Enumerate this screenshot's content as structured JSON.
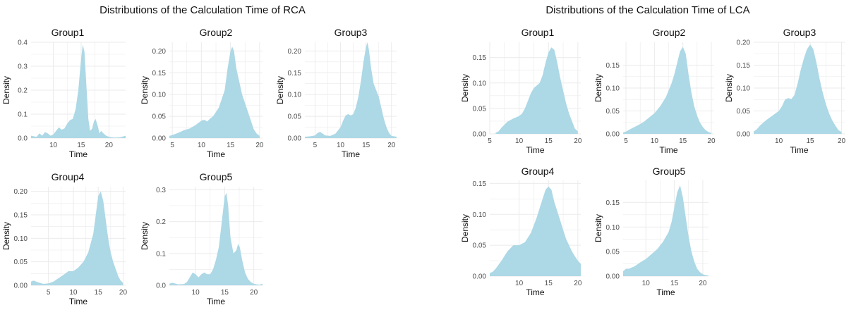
{
  "colors": {
    "fill": "#ADD8E6",
    "grid": "#EBEBEB",
    "text": "#111111",
    "tick": "#4D4D4D"
  },
  "titles": {
    "rca": "Distributions of the Calculation Time of RCA",
    "lca": "Distributions of the Calculation Time of LCA"
  },
  "chart_data": [
    {
      "type": "area",
      "panel": "RCA",
      "title": "Group1",
      "xlabel": "Time",
      "ylabel": "Density",
      "xlim": [
        6,
        23
      ],
      "ylim": [
        0,
        0.4
      ],
      "xticks": [
        10,
        15,
        20
      ],
      "yticks": [
        0.0,
        0.1,
        0.2,
        0.3,
        0.4
      ],
      "grid": true,
      "x": [
        6,
        7,
        7.5,
        8,
        8.5,
        9,
        9.5,
        10,
        10.5,
        11,
        11.5,
        12,
        12.5,
        13,
        13.5,
        14,
        14.5,
        15,
        15.3,
        15.6,
        16,
        16.3,
        16.6,
        17,
        17.3,
        17.6,
        18,
        18.3,
        18.6,
        19,
        19.5,
        20,
        20.5,
        21,
        21.5,
        22,
        23
      ],
      "y": [
        0.01,
        0.005,
        0.02,
        0.01,
        0.025,
        0.02,
        0.01,
        0.015,
        0.03,
        0.045,
        0.035,
        0.04,
        0.06,
        0.075,
        0.08,
        0.12,
        0.2,
        0.33,
        0.39,
        0.36,
        0.2,
        0.08,
        0.03,
        0.04,
        0.07,
        0.08,
        0.05,
        0.02,
        0.03,
        0.02,
        0.01,
        0.005,
        0.003,
        0.002,
        0.002,
        0.003,
        0.01
      ]
    },
    {
      "type": "area",
      "panel": "RCA",
      "title": "Group2",
      "xlabel": "Time",
      "ylabel": "Density",
      "xlim": [
        4.5,
        20.5
      ],
      "ylim": [
        0,
        0.22
      ],
      "xticks": [
        5,
        10,
        15,
        20
      ],
      "yticks": [
        0.0,
        0.05,
        0.1,
        0.15,
        0.2
      ],
      "grid": true,
      "x": [
        4.5,
        5,
        6,
        7,
        8,
        9,
        10,
        10.5,
        11,
        11.5,
        12,
        13,
        14,
        14.5,
        15,
        15.3,
        15.6,
        16,
        16.5,
        17,
        17.5,
        18,
        18.5,
        19,
        19.5,
        20
      ],
      "y": [
        0.005,
        0.007,
        0.012,
        0.018,
        0.022,
        0.03,
        0.04,
        0.042,
        0.038,
        0.045,
        0.05,
        0.07,
        0.11,
        0.16,
        0.2,
        0.21,
        0.2,
        0.16,
        0.13,
        0.1,
        0.08,
        0.06,
        0.04,
        0.02,
        0.01,
        0.005
      ]
    },
    {
      "type": "area",
      "panel": "RCA",
      "title": "Group3",
      "xlabel": "Time",
      "ylabel": "Density",
      "xlim": [
        3,
        21
      ],
      "ylim": [
        0,
        0.22
      ],
      "xticks": [
        5,
        10,
        15,
        20
      ],
      "yticks": [
        0.0,
        0.05,
        0.1,
        0.15,
        0.2
      ],
      "grid": true,
      "x": [
        3,
        4,
        5,
        5.5,
        6,
        6.5,
        7,
        8,
        9,
        10,
        10.5,
        11,
        11.5,
        12,
        12.5,
        13,
        13.5,
        14,
        14.5,
        15,
        15.3,
        15.6,
        16,
        16.5,
        17,
        17.5,
        18,
        18.5,
        19,
        19.5,
        20,
        21
      ],
      "y": [
        0.003,
        0.004,
        0.006,
        0.012,
        0.014,
        0.01,
        0.006,
        0.005,
        0.01,
        0.025,
        0.04,
        0.052,
        0.055,
        0.052,
        0.055,
        0.07,
        0.095,
        0.13,
        0.175,
        0.21,
        0.22,
        0.2,
        0.16,
        0.125,
        0.11,
        0.095,
        0.07,
        0.045,
        0.025,
        0.012,
        0.005,
        0.003
      ]
    },
    {
      "type": "area",
      "panel": "RCA",
      "title": "Group4",
      "xlabel": "Time",
      "ylabel": "Density",
      "xlim": [
        1.5,
        20.5
      ],
      "ylim": [
        0,
        0.21
      ],
      "xticks": [
        5,
        10,
        15,
        20
      ],
      "yticks": [
        0.0,
        0.05,
        0.1,
        0.15,
        0.2
      ],
      "grid": true,
      "x": [
        1.5,
        2,
        3,
        4,
        5,
        6,
        7,
        8,
        9,
        10,
        11,
        12,
        13,
        14,
        14.5,
        15,
        15.5,
        16,
        16.5,
        17,
        17.5,
        18,
        18.5,
        19,
        19.5,
        20
      ],
      "y": [
        0.008,
        0.01,
        0.006,
        0.003,
        0.004,
        0.008,
        0.015,
        0.022,
        0.03,
        0.03,
        0.038,
        0.05,
        0.07,
        0.11,
        0.15,
        0.19,
        0.2,
        0.18,
        0.14,
        0.1,
        0.07,
        0.05,
        0.035,
        0.02,
        0.01,
        0.005
      ]
    },
    {
      "type": "area",
      "panel": "RCA",
      "title": "Group5",
      "xlabel": "Time",
      "ylabel": "Density",
      "xlim": [
        5.5,
        21.5
      ],
      "ylim": [
        0,
        0.31
      ],
      "xticks": [
        10,
        15,
        20
      ],
      "yticks": [
        0.0,
        0.1,
        0.2,
        0.3
      ],
      "grid": true,
      "x": [
        5.5,
        6,
        7,
        8,
        8.5,
        9,
        9.5,
        10,
        10.5,
        11,
        11.5,
        12,
        12.5,
        13,
        13.5,
        14,
        14.5,
        15,
        15.3,
        15.6,
        16,
        16.5,
        17,
        17.3,
        17.6,
        18,
        18.5,
        19,
        19.5,
        20,
        20.5,
        21,
        21.5
      ],
      "y": [
        0.005,
        0.008,
        0.003,
        0.004,
        0.01,
        0.025,
        0.04,
        0.035,
        0.025,
        0.035,
        0.04,
        0.035,
        0.035,
        0.05,
        0.08,
        0.12,
        0.2,
        0.28,
        0.29,
        0.25,
        0.15,
        0.1,
        0.11,
        0.13,
        0.12,
        0.08,
        0.04,
        0.02,
        0.01,
        0.005,
        0.003,
        0.002,
        0.005
      ]
    },
    {
      "type": "area",
      "panel": "LCA",
      "title": "Group1",
      "xlabel": "Time",
      "ylabel": "Density",
      "xlim": [
        5,
        20.5
      ],
      "ylim": [
        0,
        0.18
      ],
      "xticks": [
        5,
        10,
        15,
        20
      ],
      "yticks": [
        0.0,
        0.05,
        0.1,
        0.15
      ],
      "grid": true,
      "x": [
        6,
        6.5,
        7,
        8,
        9,
        10,
        10.5,
        11,
        11.5,
        12,
        12.5,
        13,
        13.5,
        14,
        14.5,
        15,
        15.5,
        16,
        16.5,
        17,
        17.5,
        18,
        18.5,
        19,
        19.5,
        20
      ],
      "y": [
        0.002,
        0.005,
        0.012,
        0.024,
        0.03,
        0.035,
        0.04,
        0.05,
        0.065,
        0.08,
        0.09,
        0.095,
        0.1,
        0.115,
        0.14,
        0.16,
        0.17,
        0.165,
        0.14,
        0.11,
        0.085,
        0.06,
        0.04,
        0.025,
        0.01,
        0.005
      ]
    },
    {
      "type": "area",
      "panel": "LCA",
      "title": "Group2",
      "xlabel": "Time",
      "ylabel": "Density",
      "xlim": [
        4.5,
        20.5
      ],
      "ylim": [
        0,
        0.2
      ],
      "xticks": [
        5,
        10,
        15,
        20
      ],
      "yticks": [
        0.0,
        0.05,
        0.1,
        0.15
      ],
      "grid": true,
      "x": [
        4.5,
        5,
        6,
        7,
        8,
        9,
        10,
        11,
        12,
        12.5,
        13,
        13.5,
        14,
        14.5,
        15,
        15.5,
        16,
        16.5,
        17,
        17.5,
        18,
        18.5,
        19,
        19.5,
        20
      ],
      "y": [
        0.003,
        0.005,
        0.012,
        0.018,
        0.025,
        0.035,
        0.045,
        0.06,
        0.08,
        0.095,
        0.11,
        0.13,
        0.155,
        0.18,
        0.19,
        0.175,
        0.13,
        0.09,
        0.06,
        0.04,
        0.025,
        0.015,
        0.008,
        0.004,
        0.002
      ]
    },
    {
      "type": "area",
      "panel": "LCA",
      "title": "Group3",
      "xlabel": "Time",
      "ylabel": "Density",
      "xlim": [
        6,
        20.5
      ],
      "ylim": [
        0,
        0.2
      ],
      "xticks": [
        10,
        15,
        20
      ],
      "yticks": [
        0.0,
        0.05,
        0.1,
        0.15,
        0.2
      ],
      "grid": true,
      "x": [
        6,
        6.5,
        7,
        8,
        9,
        10,
        10.5,
        11,
        11.5,
        12,
        12.5,
        13,
        13.5,
        14,
        14.5,
        15,
        15.5,
        16,
        16.5,
        17,
        17.5,
        18,
        18.5,
        19,
        19.5,
        20
      ],
      "y": [
        0.005,
        0.01,
        0.018,
        0.03,
        0.04,
        0.05,
        0.06,
        0.075,
        0.078,
        0.076,
        0.085,
        0.11,
        0.14,
        0.165,
        0.185,
        0.195,
        0.185,
        0.155,
        0.12,
        0.09,
        0.065,
        0.045,
        0.03,
        0.018,
        0.008,
        0.004
      ]
    },
    {
      "type": "area",
      "panel": "LCA",
      "title": "Group4",
      "xlabel": "Time",
      "ylabel": "Density",
      "xlim": [
        5,
        20.5
      ],
      "ylim": [
        0,
        0.155
      ],
      "xticks": [
        10,
        15,
        20
      ],
      "yticks": [
        0.0,
        0.05,
        0.1,
        0.15
      ],
      "grid": true,
      "x": [
        5,
        5.5,
        6,
        7,
        8,
        9,
        10,
        11,
        12,
        13,
        13.5,
        14,
        14.5,
        15,
        15.5,
        16,
        16.5,
        17,
        17.5,
        18,
        18.5,
        19,
        19.5,
        20,
        20.5
      ],
      "y": [
        0.005,
        0.007,
        0.012,
        0.025,
        0.04,
        0.05,
        0.05,
        0.055,
        0.07,
        0.095,
        0.11,
        0.125,
        0.14,
        0.145,
        0.14,
        0.12,
        0.105,
        0.09,
        0.075,
        0.06,
        0.05,
        0.04,
        0.032,
        0.025,
        0.02
      ]
    },
    {
      "type": "area",
      "panel": "LCA",
      "title": "Group5",
      "xlabel": "Time",
      "ylabel": "Density",
      "xlim": [
        6,
        21
      ],
      "ylim": [
        0,
        0.195
      ],
      "xticks": [
        10,
        15,
        20
      ],
      "yticks": [
        0.0,
        0.05,
        0.1,
        0.15
      ],
      "grid": true,
      "x": [
        6,
        6.5,
        7,
        8,
        9,
        10,
        11,
        12,
        13,
        14,
        14.5,
        15,
        15.5,
        16,
        16.5,
        17,
        17.5,
        18,
        18.5,
        19,
        19.5,
        20,
        20.5,
        21
      ],
      "y": [
        0.01,
        0.015,
        0.015,
        0.02,
        0.028,
        0.035,
        0.045,
        0.055,
        0.07,
        0.09,
        0.11,
        0.14,
        0.17,
        0.185,
        0.16,
        0.12,
        0.08,
        0.05,
        0.03,
        0.015,
        0.008,
        0.004,
        0.002,
        0.001
      ]
    }
  ]
}
